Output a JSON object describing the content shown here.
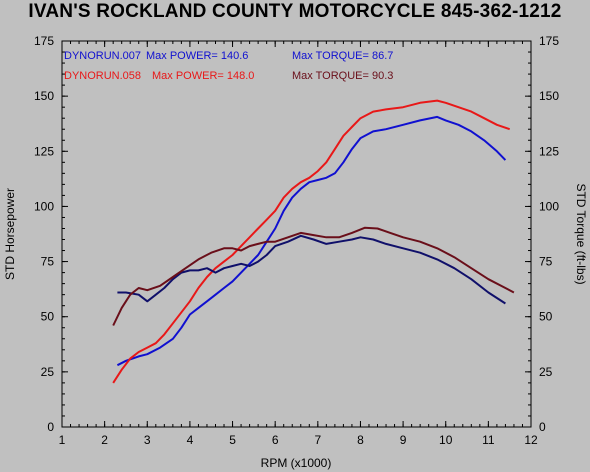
{
  "title": "IVAN'S ROCKLAND COUNTY MOTORCYCLE 845-362-1212",
  "colors": {
    "background": "#c0c0c0",
    "run1": "#1010d0",
    "run2": "#e81818",
    "run2_torque": "#6a0f1a",
    "run1_torque": "#10106a"
  },
  "legend": [
    {
      "run": "DYNORUN.007",
      "power_label": "Max POWER=",
      "power": "140.6",
      "torque_label": "Max TORQUE=",
      "torque": "86.7"
    },
    {
      "run": "DYNORUN.058",
      "power_label": "Max POWER=",
      "power": "148.0",
      "torque_label": "Max TORQUE=",
      "torque": "90.3"
    }
  ],
  "chart_data": {
    "type": "line",
    "title": "IVAN'S ROCKLAND COUNTY MOTORCYCLE 845-362-1212",
    "xlabel": "RPM (x1000)",
    "ylabel_left": "STD Horsepower",
    "ylabel_right": "STD Torque (ft-lbs)",
    "xlim": [
      1,
      12
    ],
    "ylim": [
      0,
      175
    ],
    "x_ticks": [
      1,
      2,
      3,
      4,
      5,
      6,
      7,
      8,
      9,
      10,
      11,
      12
    ],
    "y_ticks": [
      0,
      25,
      50,
      75,
      100,
      125,
      150,
      175
    ],
    "grid": false,
    "series": [
      {
        "name": "DYNORUN.007",
        "kind": "power",
        "x": [
          2.3,
          2.5,
          2.8,
          3.0,
          3.3,
          3.6,
          3.8,
          4.0,
          4.2,
          4.4,
          4.6,
          4.8,
          5.0,
          5.2,
          5.4,
          5.6,
          5.8,
          6.0,
          6.2,
          6.4,
          6.6,
          6.8,
          7.0,
          7.2,
          7.4,
          7.6,
          7.8,
          8.0,
          8.3,
          8.6,
          9.0,
          9.4,
          9.8,
          10.0,
          10.3,
          10.6,
          10.9,
          11.2,
          11.4
        ],
        "y": [
          28,
          30,
          32,
          33,
          36,
          40,
          45,
          51,
          54,
          57,
          60,
          63,
          66,
          70,
          74,
          78,
          84,
          90,
          98,
          104,
          108,
          111,
          112,
          113,
          115,
          120,
          126,
          131,
          134,
          135,
          137,
          139,
          140.6,
          139,
          137,
          134,
          130,
          125,
          121
        ]
      },
      {
        "name": "DYNORUN.058",
        "kind": "power",
        "x": [
          2.2,
          2.4,
          2.6,
          2.8,
          3.0,
          3.2,
          3.4,
          3.6,
          3.8,
          4.0,
          4.2,
          4.4,
          4.6,
          4.8,
          5.0,
          5.2,
          5.4,
          5.6,
          5.8,
          6.0,
          6.2,
          6.4,
          6.6,
          6.8,
          7.0,
          7.2,
          7.4,
          7.6,
          7.8,
          8.0,
          8.3,
          8.6,
          9.0,
          9.4,
          9.8,
          10.0,
          10.3,
          10.6,
          10.9,
          11.2,
          11.5
        ],
        "y": [
          20,
          26,
          31,
          34,
          36,
          38,
          42,
          47,
          52,
          57,
          63,
          68,
          72,
          75,
          78,
          82,
          86,
          90,
          94,
          98,
          104,
          108,
          111,
          113,
          116,
          120,
          126,
          132,
          136,
          140,
          143,
          144,
          145,
          147,
          148,
          147,
          145,
          143,
          140,
          137,
          135
        ]
      },
      {
        "name": "DYNORUN.007",
        "kind": "torque",
        "x": [
          2.3,
          2.5,
          2.8,
          3.0,
          3.2,
          3.4,
          3.6,
          3.8,
          4.0,
          4.2,
          4.4,
          4.6,
          4.8,
          5.0,
          5.2,
          5.4,
          5.6,
          5.8,
          6.0,
          6.3,
          6.6,
          6.9,
          7.2,
          7.5,
          7.8,
          8.0,
          8.3,
          8.6,
          9.0,
          9.4,
          9.8,
          10.2,
          10.6,
          11.0,
          11.4
        ],
        "y": [
          61,
          61,
          60,
          57,
          60,
          63,
          67,
          70,
          71,
          71,
          72,
          70,
          72,
          73,
          74,
          73,
          75,
          78,
          82,
          84,
          86.7,
          85,
          83,
          84,
          85,
          86,
          85,
          83,
          81,
          79,
          76,
          72,
          67,
          61,
          56
        ]
      },
      {
        "name": "DYNORUN.058",
        "kind": "torque",
        "x": [
          2.2,
          2.4,
          2.6,
          2.8,
          3.0,
          3.3,
          3.6,
          3.9,
          4.2,
          4.5,
          4.8,
          5.0,
          5.2,
          5.4,
          5.6,
          5.8,
          6.0,
          6.3,
          6.6,
          6.9,
          7.2,
          7.5,
          7.8,
          8.1,
          8.4,
          8.7,
          9.0,
          9.4,
          9.8,
          10.2,
          10.6,
          11.0,
          11.4,
          11.6
        ],
        "y": [
          46,
          54,
          60,
          63,
          62,
          64,
          68,
          72,
          76,
          79,
          81,
          81,
          80,
          82,
          83,
          84,
          84,
          86,
          88,
          87,
          86,
          86,
          88,
          90.3,
          90,
          88,
          86,
          84,
          81,
          77,
          72,
          67,
          63,
          61
        ]
      }
    ]
  }
}
